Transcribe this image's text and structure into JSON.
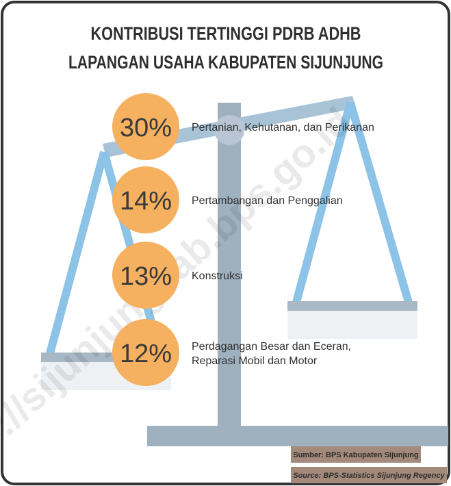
{
  "header": {
    "title": [
      "KONTRIBUSI TERTINGGI PDRB ADHB",
      "LAPANGAN USAHA KABUPATEN SIJUNJUNG"
    ]
  },
  "items": [
    {
      "value": "30%",
      "label": [
        "Pertanian, Kehutanan, dan Perikanan"
      ]
    },
    {
      "value": "14%",
      "label": [
        "Pertambangan dan Penggalian"
      ]
    },
    {
      "value": "13%",
      "label": [
        "Konstruksi"
      ]
    },
    {
      "value": "12%",
      "label": [
        "Perdagangan Besar dan Eceran,",
        "Reparasi Mobil dan Motor"
      ]
    }
  ],
  "footer": {
    "sumber": "Sumber: BPS Kabupaten Sijunjung",
    "source": "Source: BPS-Statistics Sijunjung Regency"
  },
  "watermark": "://sijunjungkab.bps.go.id"
}
